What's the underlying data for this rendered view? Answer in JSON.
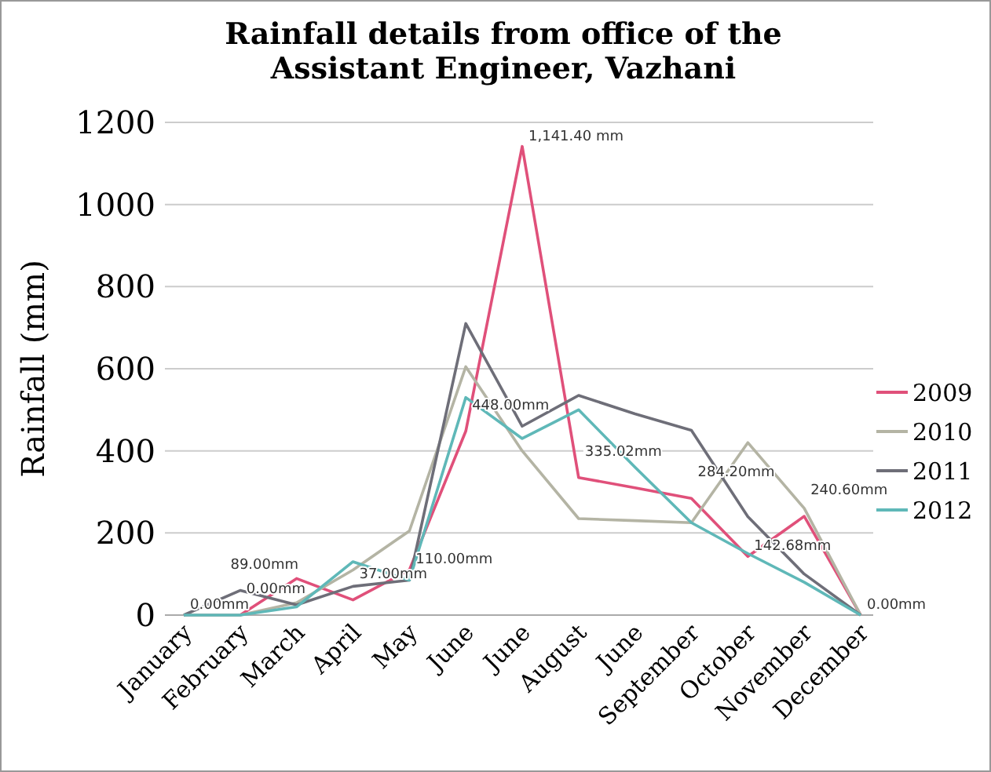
{
  "chart_data": {
    "type": "line",
    "title": "Rainfall details from office of the Assistant Engineer, Vazhani",
    "ylabel": "Rainfall (mm)",
    "categories": [
      "January",
      "February",
      "March",
      "April",
      "May",
      "June",
      "June",
      "August",
      "June",
      "September",
      "October",
      "November",
      "December"
    ],
    "ylim": [
      0,
      1200
    ],
    "yticks": [
      0,
      200,
      400,
      600,
      800,
      1000,
      1200
    ],
    "grid": "y",
    "legend": "right",
    "marker": "none",
    "series": [
      {
        "name": "2009",
        "color": "#e0507a",
        "values": [
          0,
          0,
          89,
          37,
          110,
          448,
          1141.4,
          335.02,
          310,
          284.2,
          142.68,
          240.6,
          0
        ],
        "value_labels": [
          "0.00mm",
          "0.00mm",
          "89.00mm",
          "37.00mm",
          "110.00mm",
          "448.00mm",
          "1,141.40 mm",
          "335.02mm",
          null,
          "284.20mm",
          "142.68mm",
          "240.60mm",
          "0.00mm"
        ]
      },
      {
        "name": "2010",
        "color": "#b4b4a4",
        "values": [
          0,
          0,
          30,
          110,
          205,
          605,
          400,
          235,
          230,
          225,
          420,
          260,
          0
        ]
      },
      {
        "name": "2011",
        "color": "#6e6e78",
        "values": [
          0,
          60,
          25,
          70,
          85,
          710,
          460,
          535,
          490,
          450,
          240,
          100,
          0
        ]
      },
      {
        "name": "2012",
        "color": "#5fb8b8",
        "values": [
          0,
          0,
          20,
          130,
          85,
          530,
          430,
          500,
          360,
          225,
          150,
          80,
          0
        ]
      }
    ]
  }
}
